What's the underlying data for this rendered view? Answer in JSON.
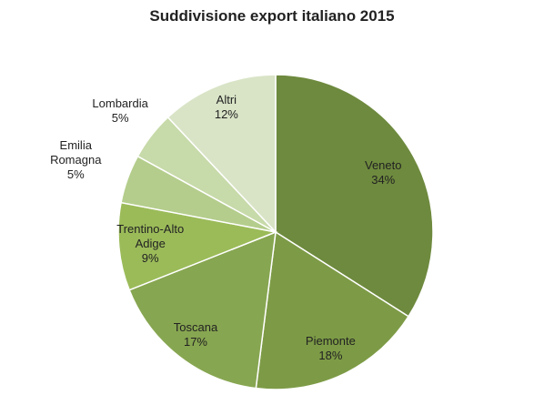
{
  "chart_data": {
    "type": "pie",
    "title": "Suddivisione export italiano 2015",
    "categories": [
      "Veneto",
      "Piemonte",
      "Toscana",
      "Trentino-Alto Adige",
      "Emilia Romagna",
      "Lombardia",
      "Altri"
    ],
    "values": [
      34,
      18,
      17,
      9,
      5,
      5,
      12
    ],
    "value_labels": [
      "34%",
      "18%",
      "17%",
      "9%",
      "5%",
      "5%",
      "12%"
    ],
    "colors": [
      "#6e8a3e",
      "#7d9b46",
      "#87a651",
      "#9bbb59",
      "#b4cd8c",
      "#c7daa9",
      "#d9e4c7"
    ]
  }
}
